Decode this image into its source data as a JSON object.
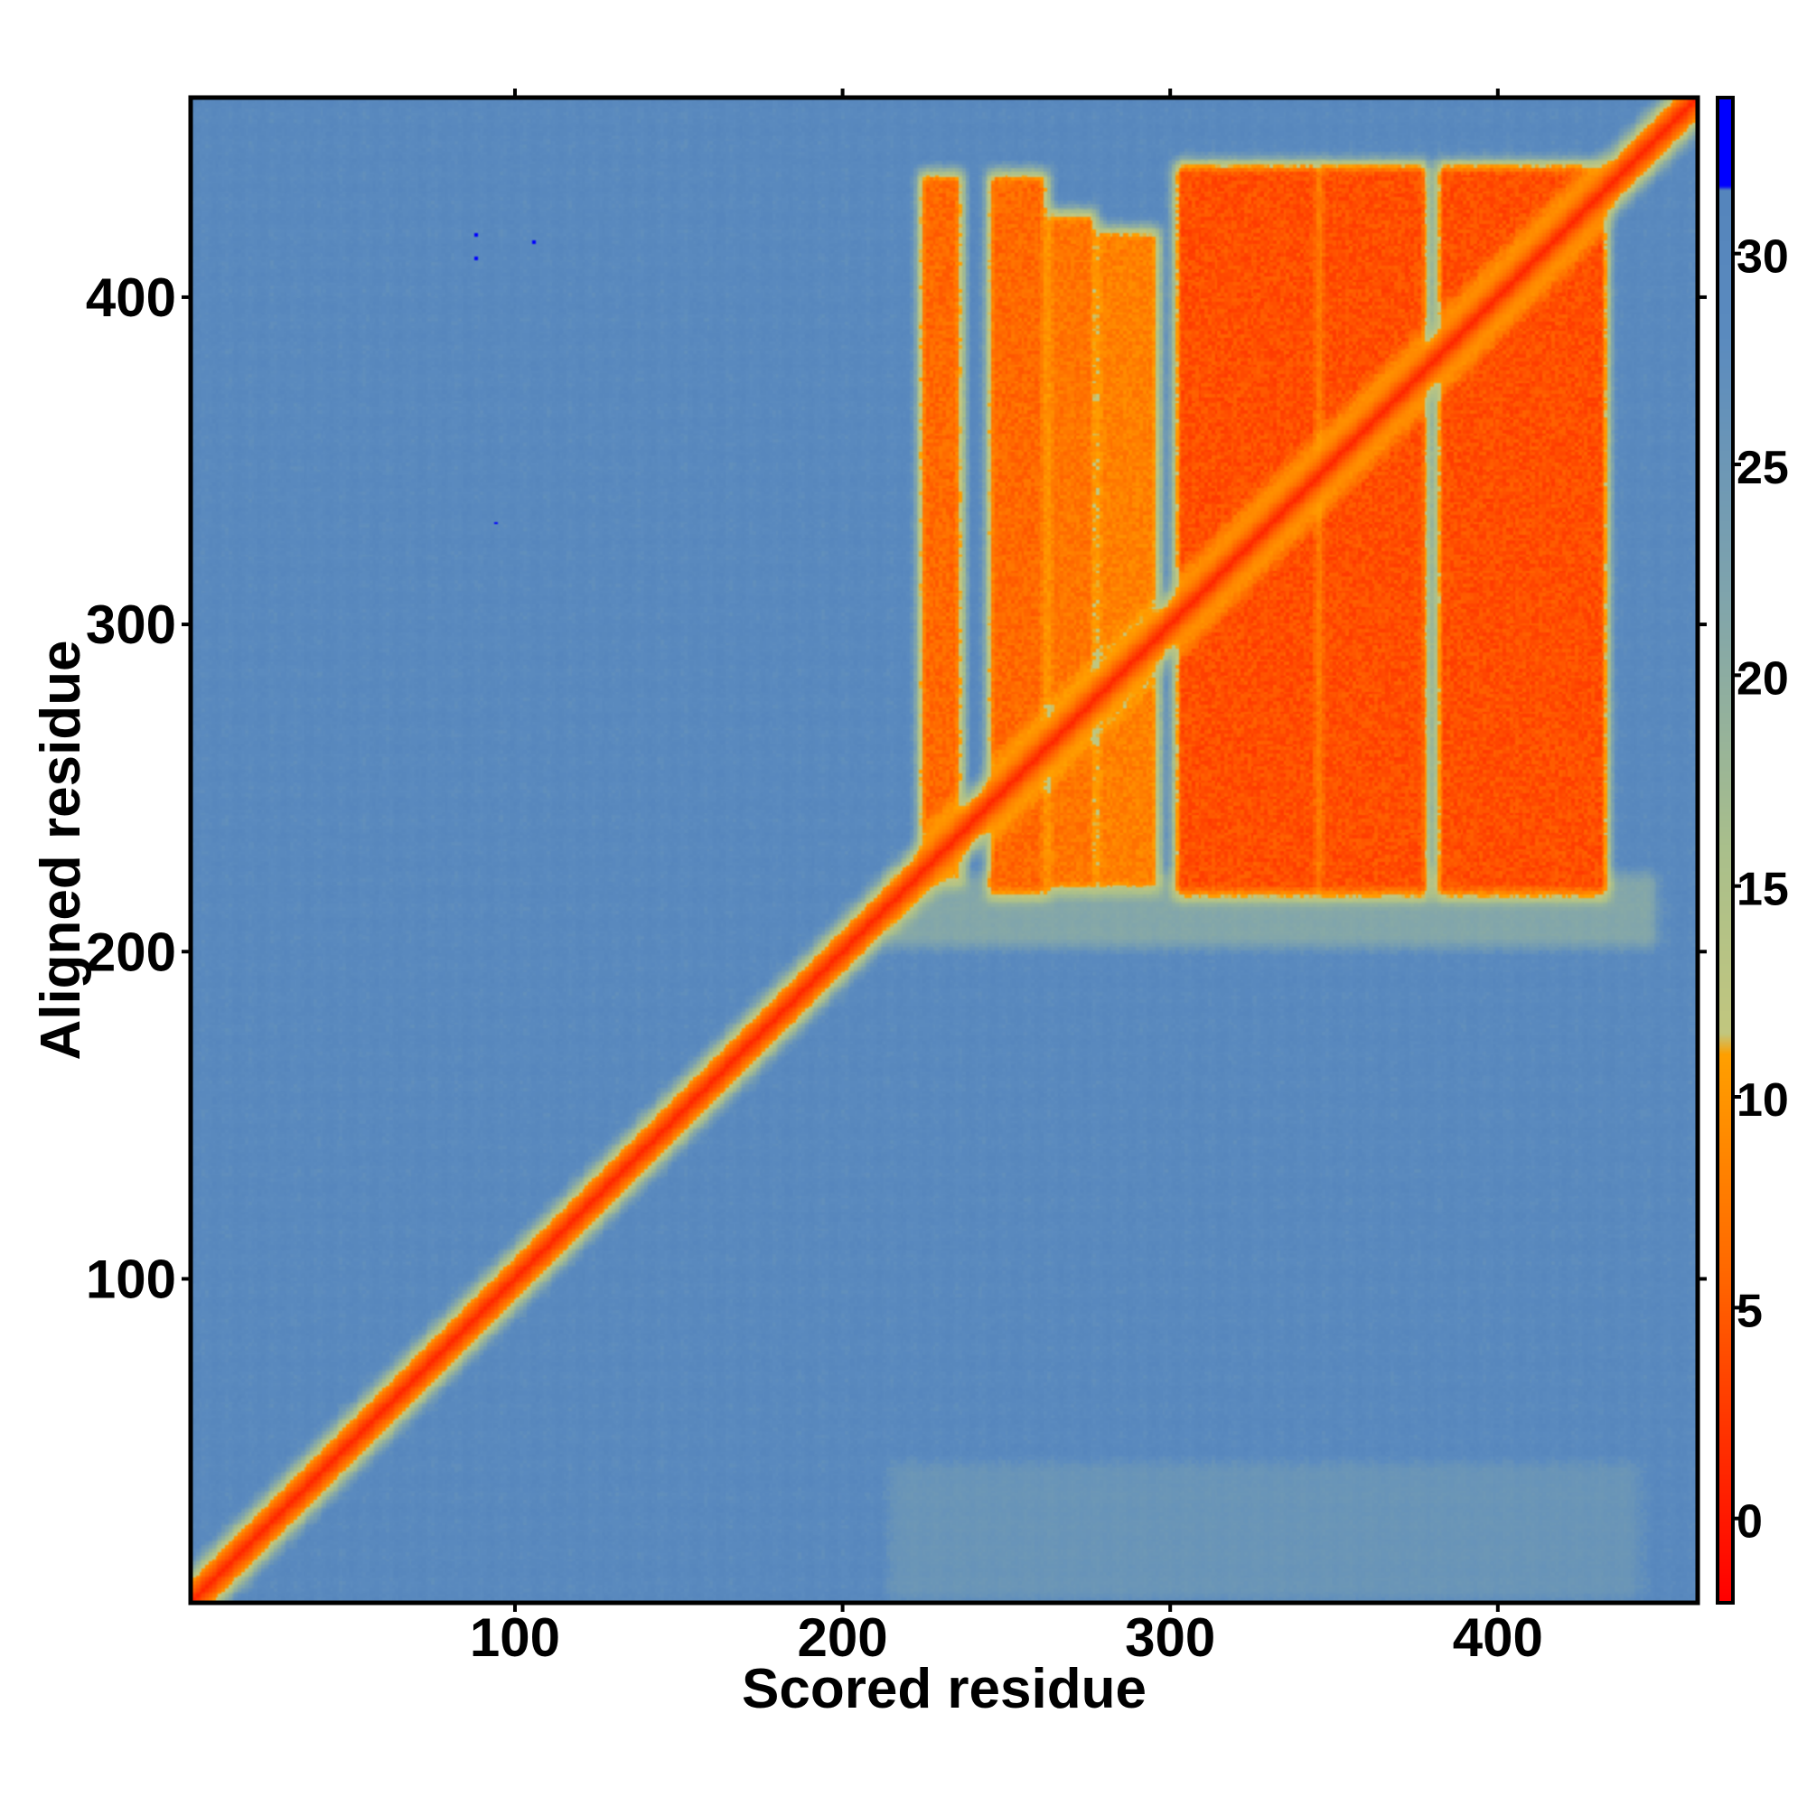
{
  "chart_data": {
    "type": "heatmap",
    "title": "",
    "xlabel": "Scored residue",
    "ylabel": "Aligned residue",
    "xlim": [
      1,
      461
    ],
    "ylim": [
      1,
      461
    ],
    "x_ticks": [
      100,
      200,
      300,
      400
    ],
    "y_ticks": [
      100,
      200,
      300,
      400
    ],
    "colorbar": {
      "ticks": [
        0,
        5,
        10,
        15,
        20,
        25,
        30
      ],
      "range": [
        -2,
        33.7
      ],
      "stops": [
        {
          "value": -2,
          "color": "#ff0000"
        },
        {
          "value": 2,
          "color": "#ff3300"
        },
        {
          "value": 6,
          "color": "#ff6a00"
        },
        {
          "value": 11,
          "color": "#ffa000"
        },
        {
          "value": 11.5,
          "color": "#c2c77f"
        },
        {
          "value": 16,
          "color": "#a9bf8c"
        },
        {
          "value": 22,
          "color": "#7fa4ad"
        },
        {
          "value": 28,
          "color": "#5b8bbf"
        },
        {
          "value": 31.5,
          "color": "#5585bc"
        },
        {
          "value": 31.6,
          "color": "#0000ff"
        },
        {
          "value": 33.7,
          "color": "#0000ff"
        }
      ]
    },
    "background_value": 29,
    "diagonal": {
      "value": 1,
      "halfwidth": 7
    },
    "domain_blocks": [
      {
        "x": [
          224,
          236
        ],
        "y": [
          222,
          437
        ],
        "value": 6
      },
      {
        "x": [
          245,
          262
        ],
        "y": [
          218,
          437
        ],
        "value": 6
      },
      {
        "x": [
          263,
          277
        ],
        "y": [
          220,
          425
        ],
        "value": 7
      },
      {
        "x": [
          278,
          296
        ],
        "y": [
          220,
          420
        ],
        "value": 8
      },
      {
        "x": [
          302,
          345
        ],
        "y": [
          218,
          440
        ],
        "value": 4
      },
      {
        "x": [
          346,
          378
        ],
        "y": [
          218,
          440
        ],
        "value": 4
      },
      {
        "x": [
          382,
          433
        ],
        "y": [
          218,
          440
        ],
        "value": 4
      }
    ],
    "vertical_bands": [
      {
        "x": [
          218,
          445
        ],
        "y": [
          205,
          220
        ],
        "value": 18
      },
      {
        "x": [
          218,
          440
        ],
        "y": [
          5,
          40
        ],
        "value": 24
      }
    ],
    "outliers": [
      {
        "x": 88,
        "y": 419,
        "value": 33
      },
      {
        "x": 106,
        "y": 417,
        "value": 33
      },
      {
        "x": 88,
        "y": 412,
        "value": 33
      },
      {
        "x": 94,
        "y": 331,
        "value": 33
      }
    ]
  }
}
